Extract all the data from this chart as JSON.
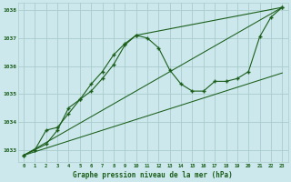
{
  "bg_color": "#cce8ec",
  "grid_color": "#aacccc",
  "line_color": "#1a5e1a",
  "marker_color": "#1a5e1a",
  "xlabel": "Graphe pression niveau de la mer (hPa)",
  "xlabel_color": "#1a5e1a",
  "ylabel_ticks": [
    1033,
    1034,
    1035,
    1036,
    1037,
    1038
  ],
  "ylim": [
    1032.55,
    1038.25
  ],
  "xlim": [
    -0.5,
    23.5
  ],
  "series": {
    "line1_jagged": {
      "x": [
        0,
        1,
        2,
        3,
        4,
        5,
        6,
        7,
        8,
        9,
        10,
        11,
        12,
        13,
        14,
        15,
        16,
        17,
        18,
        19,
        20,
        21,
        22,
        23
      ],
      "y": [
        1032.8,
        1033.0,
        1033.2,
        1033.7,
        1034.5,
        1034.8,
        1035.1,
        1035.55,
        1036.05,
        1036.75,
        1037.1,
        1037.0,
        1036.65,
        1035.85,
        1035.35,
        1035.1,
        1035.1,
        1035.45,
        1035.45,
        1035.55,
        1035.8,
        1037.05,
        1037.75,
        1038.1
      ]
    },
    "line2_smooth": {
      "x": [
        0,
        1,
        2,
        3,
        4,
        5,
        6,
        7,
        8,
        9,
        10,
        23
      ],
      "y": [
        1032.8,
        1033.0,
        1033.7,
        1033.8,
        1034.3,
        1034.8,
        1035.35,
        1035.8,
        1036.4,
        1036.8,
        1037.1,
        1038.1
      ]
    },
    "line3_straight_top": {
      "x": [
        0,
        23
      ],
      "y": [
        1032.8,
        1038.1
      ]
    },
    "line4_straight_bottom": {
      "x": [
        0,
        23
      ],
      "y": [
        1032.8,
        1035.75
      ]
    }
  }
}
